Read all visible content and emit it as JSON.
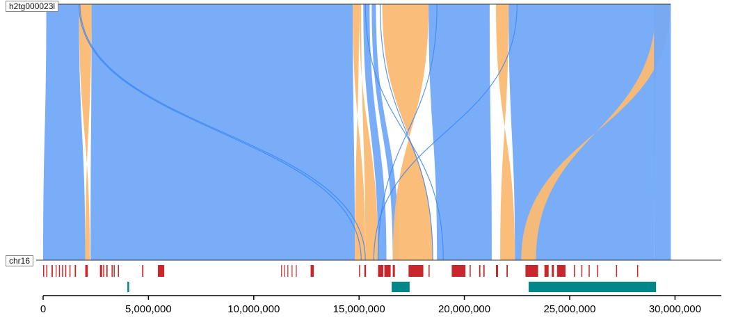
{
  "tracks": {
    "query_name": "h2tg000023l",
    "reference_name": "chr16"
  },
  "axis": {
    "min": 0,
    "max": 32200000,
    "ticks": [
      0,
      5000000,
      10000000,
      15000000,
      20000000,
      25000000,
      30000000
    ],
    "tick_labels": [
      "0",
      "5,000,000",
      "10,000,000",
      "15,000,000",
      "20,000,000",
      "25,000,000",
      "30,000,000"
    ]
  },
  "colors": {
    "forward": "#72a9f8",
    "reverse": "#fbbb73",
    "link_forward": "#3d86f0",
    "link_reverse": "#c8965a",
    "annotation_red": "#c8282b",
    "annotation_teal": "#00878a"
  },
  "alignments": [
    {
      "strand": "+",
      "query": [
        150000,
        1700000
      ],
      "ref": [
        0,
        2000000
      ]
    },
    {
      "strand": "-",
      "query": [
        1700000,
        2300000
      ],
      "ref": [
        2000000,
        2220000
      ]
    },
    {
      "strand": "+",
      "query": [
        2300000,
        14700000
      ],
      "ref": [
        2250000,
        14800000
      ]
    },
    {
      "strand": "-",
      "query": [
        14700000,
        15000000
      ],
      "ref": [
        14800000,
        15300000
      ]
    },
    {
      "strand": "-",
      "query": [
        15000000,
        15100000
      ],
      "ref": [
        15300000,
        15900000
      ]
    },
    {
      "strand": "+",
      "query": [
        15200000,
        15500000
      ],
      "ref": [
        15900000,
        16300000
      ]
    },
    {
      "strand": "+",
      "query": [
        15600000,
        15800000
      ],
      "ref": [
        16600000,
        16900000
      ]
    },
    {
      "strand": "-",
      "query": [
        16100000,
        18300000
      ],
      "ref": [
        16600000,
        18500000
      ]
    },
    {
      "strand": "+",
      "query": [
        18300000,
        21200000
      ],
      "ref": [
        18700000,
        21300000
      ]
    },
    {
      "strand": "-",
      "query": [
        21500000,
        22100000
      ],
      "ref": [
        21700000,
        22400000
      ]
    },
    {
      "strand": "+",
      "query": [
        22100000,
        29100000
      ],
      "ref": [
        22400000,
        29000000
      ]
    },
    {
      "strand": "-",
      "query": [
        29100000,
        29800000
      ],
      "ref": [
        22700000,
        23400000
      ]
    },
    {
      "strand": "+",
      "query": [
        29000000,
        29800000
      ],
      "ref": [
        29000000,
        29800000
      ]
    }
  ],
  "long_links": [
    {
      "strand": "+",
      "query": 1700000,
      "ref": 15100000
    },
    {
      "strand": "+",
      "query": 1750000,
      "ref": 15300000
    },
    {
      "strand": "+",
      "query": 22500000,
      "ref": 15700000
    },
    {
      "strand": "+",
      "query": 18700000,
      "ref": 15900000
    },
    {
      "strand": "+",
      "query": 16000000,
      "ref": 18500000
    },
    {
      "strand": "+",
      "query": 15300000,
      "ref": 19000000
    }
  ],
  "red_annotations": [
    [
      0,
      50000
    ],
    [
      150000,
      200000
    ],
    [
      400000,
      460000
    ],
    [
      600000,
      640000
    ],
    [
      750000,
      800000
    ],
    [
      900000,
      950000
    ],
    [
      1050000,
      1100000
    ],
    [
      1250000,
      1300000
    ],
    [
      1500000,
      1560000
    ],
    [
      2000000,
      2120000
    ],
    [
      2700000,
      2800000
    ],
    [
      2700000,
      2760000
    ],
    [
      2850000,
      2900000
    ],
    [
      3000000,
      3060000
    ],
    [
      3250000,
      3300000
    ],
    [
      3350000,
      3400000
    ],
    [
      3550000,
      3600000
    ],
    [
      4700000,
      4760000
    ],
    [
      5450000,
      5750000
    ],
    [
      11300000,
      11320000
    ],
    [
      11450000,
      11470000
    ],
    [
      11600000,
      11620000
    ],
    [
      11800000,
      11820000
    ],
    [
      12000000,
      12020000
    ],
    [
      12700000,
      12850000
    ],
    [
      15000000,
      15050000
    ],
    [
      15250000,
      15330000
    ],
    [
      15900000,
      16150000
    ],
    [
      16200000,
      16500000
    ],
    [
      16600000,
      16700000
    ],
    [
      17350000,
      18050000
    ],
    [
      18300000,
      18350000
    ],
    [
      19400000,
      20050000
    ],
    [
      20250000,
      20300000
    ],
    [
      20700000,
      20760000
    ],
    [
      20900000,
      20960000
    ],
    [
      21500000,
      21600000
    ],
    [
      22000000,
      22060000
    ],
    [
      22900000,
      23500000
    ],
    [
      23800000,
      24000000
    ],
    [
      24150000,
      24250000
    ],
    [
      24400000,
      24800000
    ],
    [
      25200000,
      25250000
    ],
    [
      25550000,
      25600000
    ],
    [
      25900000,
      25950000
    ],
    [
      26300000,
      26350000
    ],
    [
      27200000,
      27250000
    ],
    [
      28200000,
      28250000
    ]
  ],
  "teal_annotations": [
    [
      4000000,
      4080000
    ],
    [
      16550000,
      17400000
    ],
    [
      23050000,
      29100000
    ]
  ]
}
